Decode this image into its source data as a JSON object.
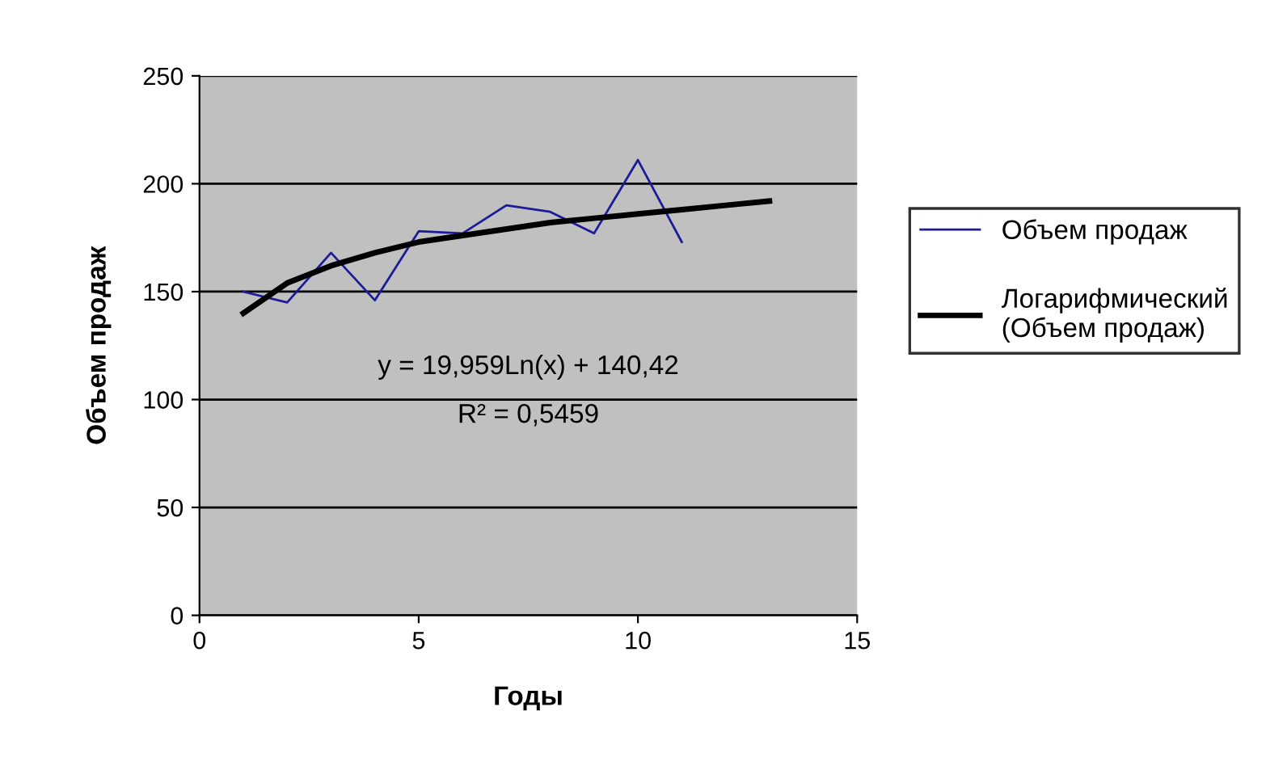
{
  "chart_data": {
    "type": "line",
    "xlabel": "Годы",
    "ylabel": "Объем продаж",
    "series": [
      {
        "name": "Объем продаж",
        "color": "#1c1c9a",
        "x": [
          1,
          2,
          3,
          4,
          5,
          6,
          7,
          8,
          9,
          10,
          11
        ],
        "values": [
          150,
          145,
          168,
          146,
          178,
          177,
          190,
          187,
          177,
          211,
          173
        ]
      },
      {
        "name": "Логарифмический\n(Объем продаж)",
        "color": "#000000",
        "x": [
          1,
          2,
          3,
          4,
          5,
          6,
          7,
          8,
          9,
          10,
          11,
          12,
          13
        ],
        "values": [
          140,
          154,
          162,
          168,
          173,
          176,
          179,
          182,
          184,
          186,
          188,
          190,
          192
        ]
      }
    ],
    "annotations": [
      "y = 19,959Ln(x) + 140,42",
      "R² = 0,5459"
    ],
    "xlim": [
      0,
      15
    ],
    "ylim": [
      0,
      250
    ],
    "xticks": [
      0,
      5,
      10,
      15
    ],
    "yticks": [
      0,
      50,
      100,
      150,
      200,
      250
    ],
    "grid": "y",
    "legend": "right",
    "marker": "none",
    "line_style": "solid"
  }
}
